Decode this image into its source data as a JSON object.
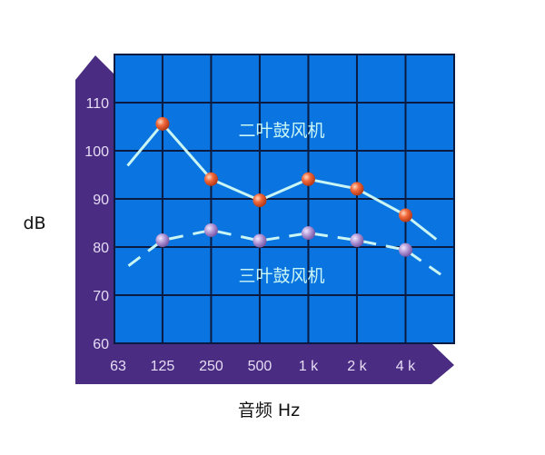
{
  "chart_data": {
    "type": "line",
    "xlabel": "音频 Hz",
    "ylabel": "dB",
    "x_scale": "log2 (octave bands)",
    "x_tick_labels": [
      "63",
      "125",
      "250",
      "500",
      "1 k",
      "2 k",
      "4 k"
    ],
    "x_tick_values": [
      63,
      125,
      250,
      500,
      1000,
      2000,
      4000
    ],
    "xlim": [
      63,
      8000
    ],
    "y_tick_labels": [
      "60",
      "70",
      "80",
      "90",
      "100",
      "110"
    ],
    "ylim": [
      60,
      120
    ],
    "grid": true,
    "series": [
      {
        "name": "二叶鼓风机",
        "style": "solid",
        "marker_color": "#f26a3c",
        "x": [
          76,
          125,
          250,
          500,
          1000,
          2000,
          4000,
          6200
        ],
        "y": [
          96.9,
          105.6,
          94.1,
          89.7,
          94.1,
          92.1,
          86.6,
          81.6
        ],
        "markers": [
          false,
          true,
          true,
          true,
          true,
          true,
          true,
          false
        ]
      },
      {
        "name": "三叶鼓风机",
        "style": "dashed",
        "marker_color": "#b49ad8",
        "x": [
          77,
          125,
          250,
          500,
          1000,
          2000,
          4000,
          6600
        ],
        "y": [
          76.1,
          81.4,
          83.5,
          81.3,
          82.9,
          81.4,
          79.4,
          74.3
        ],
        "markers": [
          false,
          true,
          true,
          true,
          true,
          true,
          true,
          false
        ]
      }
    ],
    "colors": {
      "plot_background": "#0a74e0",
      "grid": "#0b1a40",
      "axis_band": "#4a2d82",
      "line": "#c9f6f4"
    }
  }
}
